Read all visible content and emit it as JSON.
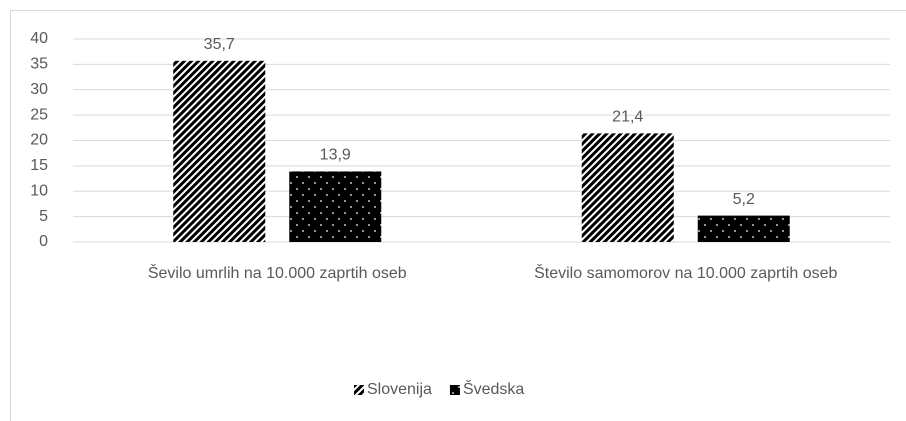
{
  "chart_data": {
    "type": "bar",
    "categories": [
      "Ševilo umrlih na 10.000  zaprtih oseb",
      "Število samomorov na 10.000 zaprtih oseb"
    ],
    "series": [
      {
        "name": "Slovenija",
        "color": "#000000",
        "pattern": "diagonal-stripes",
        "values": [
          35.7,
          21.4
        ],
        "value_labels": [
          "35,7",
          "21,4"
        ]
      },
      {
        "name": "Švedska",
        "color": "#000000",
        "pattern": "dots",
        "values": [
          13.9,
          5.2
        ],
        "value_labels": [
          "13,9",
          "5,2"
        ]
      }
    ],
    "ylim": [
      0,
      40
    ],
    "yticks": [
      0,
      5,
      10,
      15,
      20,
      25,
      30,
      35,
      40
    ],
    "grid": true,
    "legend": "bottom"
  }
}
